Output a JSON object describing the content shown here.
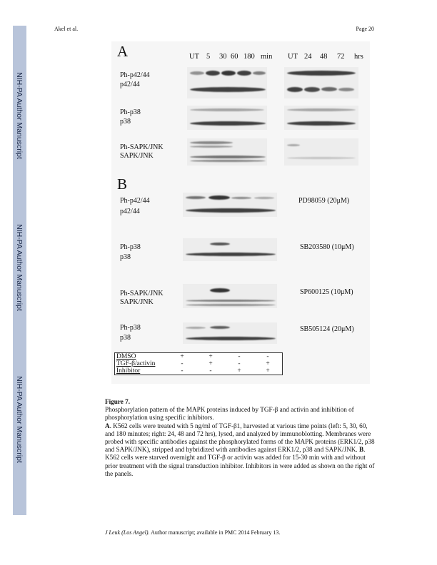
{
  "header": {
    "author": "Akel et al.",
    "page": "Page 20"
  },
  "sidebar_text": [
    "NIH-PA Author Manuscript",
    "NIH-PA Author Manuscript",
    "NIH-PA Author Manuscript"
  ],
  "figure": {
    "panel_a": {
      "letter": "A",
      "time_left": [
        "UT",
        "5",
        "30",
        "60",
        "180",
        "min"
      ],
      "time_right": [
        "UT",
        "24",
        "48",
        "72",
        "hrs"
      ],
      "labels": [
        "Ph-p42/44",
        "p42/44",
        "Ph-p38",
        "p38",
        "Ph-SAPK/JNK",
        "SAPK/JNK"
      ]
    },
    "panel_b": {
      "letter": "B",
      "labels": [
        "Ph-p42/44",
        "p42/44",
        "Ph-p38",
        "p38",
        "Ph-SAPK/JNK",
        "SAPK/JNK",
        "Ph-p38",
        "p38"
      ],
      "inhibitors": [
        "PD98059 (20μM)",
        "SB203580 (10μM)",
        "SP600125 (10μM)",
        "SB505124 (20μM)"
      ],
      "conditions": [
        {
          "name": "DMSO",
          "values": [
            "+",
            "+",
            "-",
            "-"
          ]
        },
        {
          "name": "TGF-β/activin",
          "values": [
            "-",
            "+",
            "-",
            "+"
          ]
        },
        {
          "name": "Inhibitor",
          "values": [
            "-",
            "-",
            "+",
            "+"
          ]
        }
      ]
    }
  },
  "caption": {
    "title": "Figure 7.",
    "para1": "Phosphorylation pattern of the MAPK proteins induced by TGF-β and activin and inhibition of phosphorylation using specific inhibitors.",
    "a_label": "A",
    "a_text": ". K562 cells were treated with 5 ng/ml of TGF-β1, harvested at various time points (left: 5, 30, 60, and 180 minutes; right: 24, 48 and 72 hrs), lysed, and analyzed by immunoblotting. Membranes were probed with specific antibodies against the phosphorylated forms of the MAPK proteins (ERK1/2, p38 and SAPK/JNK), stripped and hybridized with antibodies against ERK1/2, p38 and SAPK/JNK. ",
    "b_label": "B",
    "b_text": ". K562 cells were starved overnight and TGF-β or activin was added for 15-30 min with and without prior treatment with the signal transduction inhibitor. Inhibitors in were added as shown on the right of the panels."
  },
  "footer": {
    "journal": "J Leuk (Los Angel)",
    "rest": ". Author manuscript; available in PMC 2014 February 13."
  }
}
